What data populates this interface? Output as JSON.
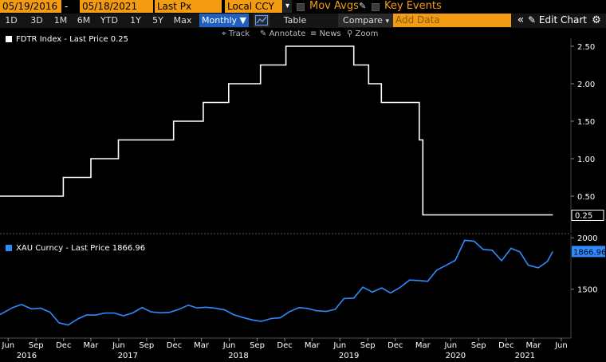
{
  "header": {
    "start_date": "05/19/2016",
    "end_date": "05/18/2021",
    "date_separator": "-",
    "field": "Last Px",
    "currency": "Local CCY",
    "mov_avgs_label": "Mov Avgs",
    "key_events_label": "Key Events"
  },
  "toolbar": {
    "ranges": [
      "1D",
      "3D",
      "1M",
      "6M",
      "YTD",
      "1Y",
      "5Y",
      "Max"
    ],
    "period": "Monthly",
    "table_label": "Table",
    "compare_label": "Compare",
    "add_data_placeholder": "Add Data",
    "edit_chart_label": "Edit Chart",
    "collapse_glyph": "«",
    "gear_icon": "gear-icon"
  },
  "subtoolbar": {
    "track": "Track",
    "annotate": "Annotate",
    "news": "News",
    "zoom": "Zoom"
  },
  "colors": {
    "accent": "#f39c12",
    "fdtr_line": "#ffffff",
    "xau_line": "#2e8bff",
    "active_button": "#1f5fbf"
  },
  "chart_data": [
    {
      "type": "line",
      "legend": "FDTR Index - Last Price 0.25",
      "series": [
        {
          "name": "FDTR Index - Last Price 0.25",
          "step": true,
          "points": [
            [
              "2016-05-19",
              0.5
            ],
            [
              "2016-12-14",
              0.75
            ],
            [
              "2017-03-15",
              1.0
            ],
            [
              "2017-06-14",
              1.25
            ],
            [
              "2017-12-13",
              1.5
            ],
            [
              "2018-03-21",
              1.75
            ],
            [
              "2018-06-13",
              2.0
            ],
            [
              "2018-09-26",
              2.25
            ],
            [
              "2018-12-19",
              2.5
            ],
            [
              "2019-07-31",
              2.25
            ],
            [
              "2019-09-18",
              2.0
            ],
            [
              "2019-10-30",
              1.75
            ],
            [
              "2020-03-03",
              1.25
            ],
            [
              "2020-03-15",
              0.25
            ],
            [
              "2021-05-18",
              0.25
            ]
          ]
        }
      ],
      "last_value_label": "0.25",
      "yticks": [
        "0.50",
        "1.00",
        "1.50",
        "2.00",
        "2.50"
      ],
      "ylim": [
        0.0,
        2.5
      ]
    },
    {
      "type": "line",
      "legend": "XAU Curncy - Last Price 1866.96",
      "series": [
        {
          "name": "XAU Curncy - Last Price 1866.96",
          "points": [
            [
              "2016-05-19",
              1254
            ],
            [
              "2016-06-30",
              1322
            ],
            [
              "2016-07-29",
              1351
            ],
            [
              "2016-08-31",
              1309
            ],
            [
              "2016-09-30",
              1316
            ],
            [
              "2016-10-31",
              1277
            ],
            [
              "2016-11-30",
              1173
            ],
            [
              "2016-12-30",
              1151
            ],
            [
              "2017-01-31",
              1211
            ],
            [
              "2017-02-28",
              1249
            ],
            [
              "2017-03-31",
              1249
            ],
            [
              "2017-04-28",
              1268
            ],
            [
              "2017-05-31",
              1269
            ],
            [
              "2017-06-30",
              1242
            ],
            [
              "2017-07-31",
              1269
            ],
            [
              "2017-08-31",
              1322
            ],
            [
              "2017-09-29",
              1280
            ],
            [
              "2017-10-31",
              1271
            ],
            [
              "2017-11-30",
              1275
            ],
            [
              "2017-12-29",
              1303
            ],
            [
              "2018-01-31",
              1345
            ],
            [
              "2018-02-28",
              1318
            ],
            [
              "2018-03-30",
              1325
            ],
            [
              "2018-04-30",
              1315
            ],
            [
              "2018-05-31",
              1299
            ],
            [
              "2018-06-29",
              1253
            ],
            [
              "2018-07-31",
              1224
            ],
            [
              "2018-08-31",
              1201
            ],
            [
              "2018-09-28",
              1187
            ],
            [
              "2018-10-31",
              1215
            ],
            [
              "2018-11-30",
              1222
            ],
            [
              "2018-12-31",
              1282
            ],
            [
              "2019-01-31",
              1321
            ],
            [
              "2019-02-28",
              1313
            ],
            [
              "2019-03-29",
              1292
            ],
            [
              "2019-04-30",
              1284
            ],
            [
              "2019-05-31",
              1305
            ],
            [
              "2019-06-28",
              1409
            ],
            [
              "2019-07-31",
              1414
            ],
            [
              "2019-08-30",
              1520
            ],
            [
              "2019-09-30",
              1472
            ],
            [
              "2019-10-31",
              1513
            ],
            [
              "2019-11-29",
              1464
            ],
            [
              "2019-12-31",
              1517
            ],
            [
              "2020-01-31",
              1589
            ],
            [
              "2020-02-28",
              1585
            ],
            [
              "2020-03-31",
              1577
            ],
            [
              "2020-04-30",
              1686
            ],
            [
              "2020-05-29",
              1730
            ],
            [
              "2020-06-30",
              1781
            ],
            [
              "2020-07-31",
              1975
            ],
            [
              "2020-08-31",
              1968
            ],
            [
              "2020-09-30",
              1887
            ],
            [
              "2020-10-30",
              1879
            ],
            [
              "2020-11-30",
              1777
            ],
            [
              "2020-12-31",
              1898
            ],
            [
              "2021-01-29",
              1863
            ],
            [
              "2021-02-26",
              1734
            ],
            [
              "2021-03-31",
              1708
            ],
            [
              "2021-04-30",
              1769
            ],
            [
              "2021-05-18",
              1867
            ]
          ]
        }
      ],
      "last_value_label": "1866.96",
      "yticks": [
        "1500",
        "2000"
      ],
      "ylim": [
        1025,
        2025
      ]
    }
  ],
  "xaxis": {
    "months": [
      [
        "Jun",
        "2016-06-15"
      ],
      [
        "Sep",
        "2016-09-15"
      ],
      [
        "Dec",
        "2016-12-15"
      ],
      [
        "Mar",
        "2017-03-15"
      ],
      [
        "Jun",
        "2017-06-15"
      ],
      [
        "Sep",
        "2017-09-15"
      ],
      [
        "Dec",
        "2017-12-15"
      ],
      [
        "Mar",
        "2018-03-15"
      ],
      [
        "Jun",
        "2018-06-15"
      ],
      [
        "Sep",
        "2018-09-15"
      ],
      [
        "Dec",
        "2018-12-15"
      ],
      [
        "Mar",
        "2019-03-15"
      ],
      [
        "Jun",
        "2019-06-15"
      ],
      [
        "Sep",
        "2019-09-15"
      ],
      [
        "Dec",
        "2019-12-15"
      ],
      [
        "Mar",
        "2020-03-15"
      ],
      [
        "Jun",
        "2020-06-15"
      ],
      [
        "Sep",
        "2020-09-15"
      ],
      [
        "Dec",
        "2020-12-15"
      ],
      [
        "Mar",
        "2021-03-15"
      ],
      [
        "Jun",
        "2021-06-15"
      ]
    ],
    "years": [
      [
        "2016",
        "2016-08-15"
      ],
      [
        "2017",
        "2017-07-15"
      ],
      [
        "2018",
        "2018-07-15"
      ],
      [
        "2019",
        "2019-07-15"
      ],
      [
        "2020",
        "2020-07-01"
      ],
      [
        "2021",
        "2021-02-15"
      ]
    ],
    "range": [
      "2016-05-19",
      "2021-07-01"
    ]
  }
}
